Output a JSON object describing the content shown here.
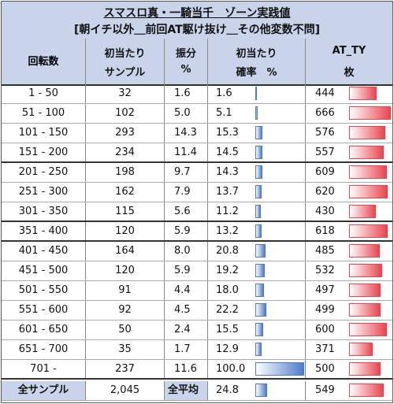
{
  "title": {
    "line1": "スマスロ真・一騎当千　ゾーン実践値",
    "line2": "[朝イチ以外＿前回AT駆け抜け＿その他変数不問]"
  },
  "headers": {
    "range": "回転数",
    "sample_l1": "初当たり",
    "sample_l2": "サンプル",
    "dist_l1": "振分",
    "dist_l2": "%",
    "rate_l1": "初当たり",
    "rate_l2": "確率　%",
    "ty_l1": "AT_TY",
    "ty_l2": "枚"
  },
  "colors": {
    "header_bg": "#c9d3ea",
    "rate_bar": "#4f7cc9",
    "ty_bar": "#e9454f"
  },
  "rows": [
    {
      "range": "1 - 50",
      "sample": "32",
      "dist": "1.6",
      "rate": "1.6",
      "rate_val": 1.6,
      "ty": "444",
      "ty_val": 444
    },
    {
      "range": "51 - 100",
      "sample": "102",
      "dist": "5.0",
      "rate": "5.1",
      "rate_val": 5.1,
      "ty": "666",
      "ty_val": 666
    },
    {
      "range": "101 - 150",
      "sample": "293",
      "dist": "14.3",
      "rate": "15.3",
      "rate_val": 15.3,
      "ty": "576",
      "ty_val": 576
    },
    {
      "range": "151 - 200",
      "sample": "234",
      "dist": "11.4",
      "rate": "14.5",
      "rate_val": 14.5,
      "ty": "557",
      "ty_val": 557
    },
    {
      "range": "201 - 250",
      "sample": "198",
      "dist": "9.7",
      "rate": "14.3",
      "rate_val": 14.3,
      "ty": "609",
      "ty_val": 609
    },
    {
      "range": "251 - 300",
      "sample": "162",
      "dist": "7.9",
      "rate": "13.7",
      "rate_val": 13.7,
      "ty": "620",
      "ty_val": 620
    },
    {
      "range": "301 - 350",
      "sample": "115",
      "dist": "5.6",
      "rate": "11.2",
      "rate_val": 11.2,
      "ty": "430",
      "ty_val": 430
    },
    {
      "range": "351 - 400",
      "sample": "120",
      "dist": "5.9",
      "rate": "13.2",
      "rate_val": 13.2,
      "ty": "618",
      "ty_val": 618
    },
    {
      "range": "401 - 450",
      "sample": "164",
      "dist": "8.0",
      "rate": "20.8",
      "rate_val": 20.8,
      "ty": "485",
      "ty_val": 485
    },
    {
      "range": "451 - 500",
      "sample": "120",
      "dist": "5.9",
      "rate": "19.2",
      "rate_val": 19.2,
      "ty": "532",
      "ty_val": 532
    },
    {
      "range": "501 - 550",
      "sample": "91",
      "dist": "4.4",
      "rate": "18.0",
      "rate_val": 18.0,
      "ty": "497",
      "ty_val": 497
    },
    {
      "range": "551 - 600",
      "sample": "92",
      "dist": "4.5",
      "rate": "22.2",
      "rate_val": 22.2,
      "ty": "499",
      "ty_val": 499
    },
    {
      "range": "601 - 650",
      "sample": "50",
      "dist": "2.4",
      "rate": "15.5",
      "rate_val": 15.5,
      "ty": "600",
      "ty_val": 600
    },
    {
      "range": "651 - 700",
      "sample": "35",
      "dist": "1.7",
      "rate": "12.9",
      "rate_val": 12.9,
      "ty": "371",
      "ty_val": 371
    },
    {
      "range": "701 -",
      "sample": "237",
      "dist": "11.6",
      "rate": "100.0",
      "rate_val": 100.0,
      "ty": "500",
      "ty_val": 500
    }
  ],
  "summary": {
    "range": "全サンプル",
    "sample": "2,045",
    "dist": "全平均",
    "rate": "24.8",
    "rate_val": 24.8,
    "ty": "549",
    "ty_val": 549
  }
}
